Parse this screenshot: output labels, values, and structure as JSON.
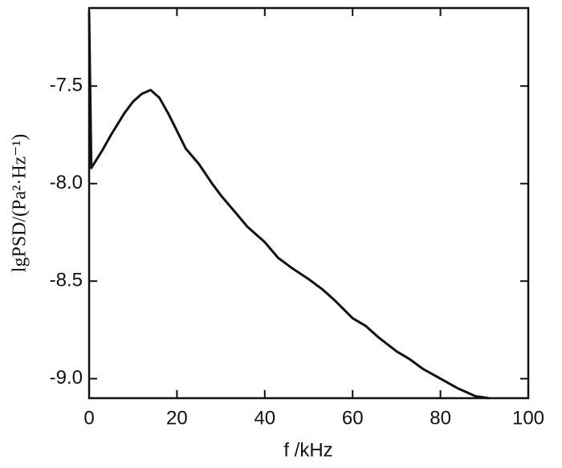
{
  "chart_data": {
    "type": "line",
    "xlabel": "f /kHz",
    "ylabel": "lgPSD/(Pa²·Hz⁻¹)",
    "series": [
      {
        "color": "#111111",
        "x": [
          0,
          0.5,
          3,
          5,
          8,
          10,
          12,
          14,
          16,
          18,
          20,
          22,
          25,
          28,
          30,
          33,
          36,
          40,
          43,
          46,
          50,
          53,
          56,
          60,
          63,
          66,
          70,
          73,
          76,
          80,
          84,
          88,
          91
        ],
        "values": [
          -7.12,
          -7.92,
          -7.83,
          -7.75,
          -7.64,
          -7.58,
          -7.54,
          -7.52,
          -7.56,
          -7.64,
          -7.73,
          -7.82,
          -7.9,
          -8.0,
          -8.06,
          -8.14,
          -8.22,
          -8.3,
          -8.38,
          -8.43,
          -8.49,
          -8.54,
          -8.6,
          -8.69,
          -8.73,
          -8.79,
          -8.86,
          -8.9,
          -8.95,
          -9.0,
          -9.05,
          -9.09,
          -9.1
        ]
      }
    ],
    "xlim": [
      0,
      100
    ],
    "xticks": [
      0,
      20,
      40,
      60,
      80,
      100
    ],
    "ylim": [
      -9.1,
      -7.1
    ],
    "yticks": [
      {
        "value": -7.5,
        "label": "-7.5"
      },
      {
        "value": -8.0,
        "label": "-8.0"
      },
      {
        "value": -8.5,
        "label": "-8.5"
      },
      {
        "value": -9.0,
        "label": "-9.0"
      }
    ],
    "grid": false
  }
}
